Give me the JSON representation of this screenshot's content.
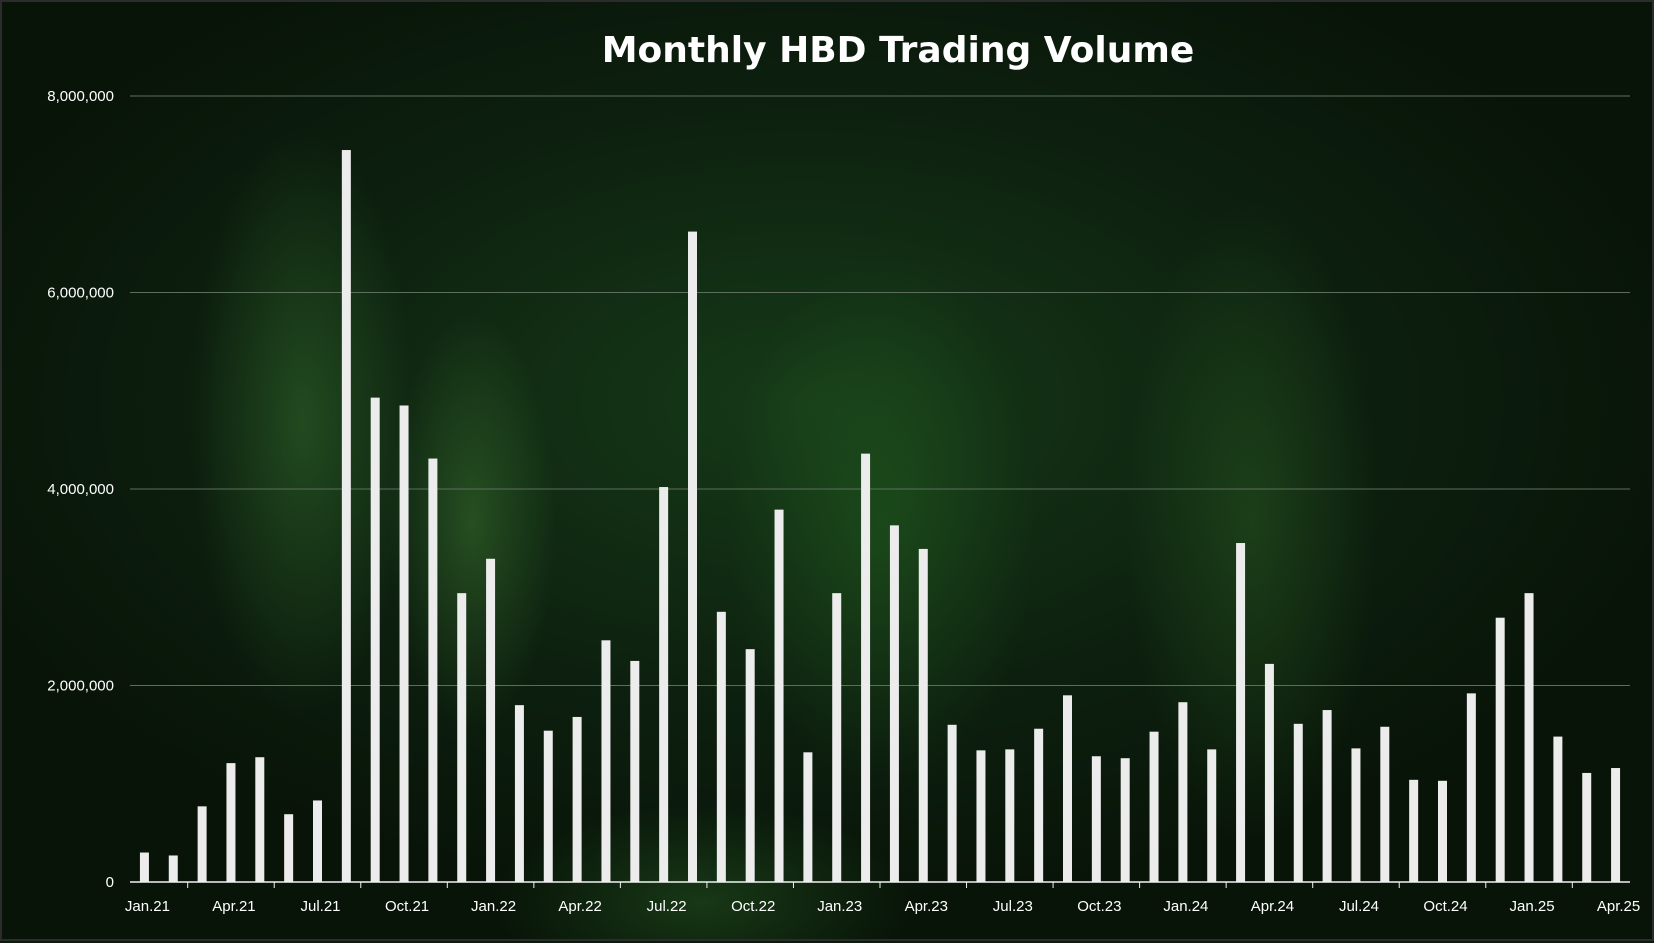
{
  "chart_data": {
    "type": "bar",
    "title": "Monthly HBD Trading Volume",
    "xlabel": "",
    "ylabel": "",
    "ylim": [
      0,
      8000000
    ],
    "yticks": [
      0,
      2000000,
      4000000,
      6000000,
      8000000
    ],
    "ytick_labels": [
      "0",
      "2,000,000",
      "4,000,000",
      "6,000,000",
      "8,000,000"
    ],
    "grid": true,
    "bar_color": "#ececec",
    "grid_color": "#5d6e5e",
    "categories": [
      "Jan.21",
      "Feb.21",
      "Mar.21",
      "Apr.21",
      "May.21",
      "Jun.21",
      "Jul.21",
      "Aug.21",
      "Sep.21",
      "Oct.21",
      "Nov.21",
      "Dec.21",
      "Jan.22",
      "Feb.22",
      "Mar.22",
      "Apr.22",
      "May.22",
      "Jun.22",
      "Jul.22",
      "Aug.22",
      "Sep.22",
      "Oct.22",
      "Nov.22",
      "Dec.22",
      "Jan.23",
      "Feb.23",
      "Mar.23",
      "Apr.23",
      "May.23",
      "Jun.23",
      "Jul.23",
      "Aug.23",
      "Sep.23",
      "Oct.23",
      "Nov.23",
      "Dec.23",
      "Jan.24",
      "Feb.24",
      "Mar.24",
      "Apr.24",
      "May.24",
      "Jun.24",
      "Jul.24",
      "Aug.24",
      "Sep.24",
      "Oct.24",
      "Nov.24",
      "Dec.24",
      "Jan.25",
      "Feb.25",
      "Mar.25",
      "Apr.25"
    ],
    "x_tick_labels": [
      "Jan.21",
      "Apr.21",
      "Jul.21",
      "Oct.21",
      "Jan.22",
      "Apr.22",
      "Jul.22",
      "Oct.22",
      "Jan.23",
      "Apr.23",
      "Jul.23",
      "Oct.23",
      "Jan.24",
      "Apr.24",
      "Jul.24",
      "Oct.24",
      "Jan.25",
      "Apr.25"
    ],
    "values": [
      300000,
      270000,
      770000,
      1210000,
      1270000,
      690000,
      830000,
      7450000,
      4930000,
      4850000,
      4310000,
      2940000,
      3290000,
      1800000,
      1540000,
      1680000,
      2460000,
      2250000,
      4020000,
      6620000,
      2750000,
      2370000,
      3790000,
      1320000,
      2940000,
      4360000,
      3630000,
      3390000,
      1600000,
      1340000,
      1350000,
      1560000,
      1900000,
      1280000,
      1260000,
      1530000,
      1830000,
      1350000,
      3450000,
      2220000,
      1610000,
      1750000,
      1360000,
      1580000,
      1040000,
      1030000,
      1920000,
      2690000,
      2940000,
      1480000,
      1110000,
      1160000
    ]
  }
}
